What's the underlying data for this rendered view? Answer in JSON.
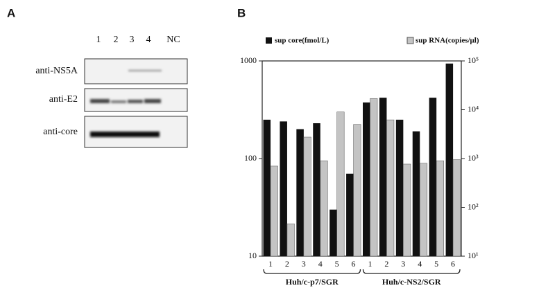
{
  "panel_a": {
    "panel_label": "A",
    "lanes": [
      "1",
      "2",
      "3",
      "4",
      "NC"
    ],
    "blots": [
      "anti-NS5A",
      "anti-E2",
      "anti-core"
    ]
  },
  "chart_data": {
    "type": "bar",
    "panel_label": "B",
    "categories": [
      "1",
      "2",
      "3",
      "4",
      "5",
      "6",
      "1",
      "2",
      "3",
      "4",
      "5",
      "6"
    ],
    "group_labels": [
      "Huh/c-p7/SGR",
      "Huh/c-NS2/SGR"
    ],
    "series": [
      {
        "name": "sup core(fmol/L)",
        "color": "#111111",
        "values": [
          250,
          240,
          200,
          230,
          30,
          70,
          375,
          420,
          250,
          190,
          420,
          940
        ]
      },
      {
        "name": "sup RNA(copies/μl)",
        "color": "#c4c4c4",
        "axis": "y2",
        "values": [
          700,
          46,
          2750,
          900,
          9000,
          5000,
          17000,
          6200,
          770,
          800,
          900,
          950
        ]
      }
    ],
    "ylim": [
      10,
      1000
    ],
    "yticks": [
      10,
      100,
      1000
    ],
    "yscale": "log",
    "y2lim": [
      10,
      100000
    ],
    "y2scale": "log",
    "y2ticks": [
      {
        "value": 10,
        "label": "10¹"
      },
      {
        "value": 100,
        "label": "10²"
      },
      {
        "value": 1000,
        "label": "10³"
      },
      {
        "value": 10000,
        "label": "10⁴"
      },
      {
        "value": 100000,
        "label": "10⁵"
      }
    ]
  }
}
